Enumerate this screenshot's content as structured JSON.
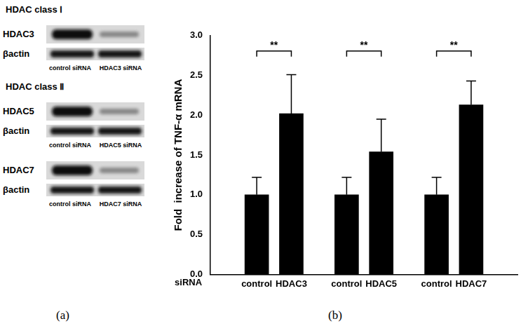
{
  "panel_a": {
    "label": "(a)",
    "sections": [
      {
        "heading": "HDAC class Ⅰ",
        "blots": [
          {
            "target": "HDAC3",
            "loading": "βactin",
            "lanes": [
              "control siRNA",
              "HDAC3 siRNA"
            ]
          }
        ]
      },
      {
        "heading": "HDAC class Ⅱ",
        "blots": [
          {
            "target": "HDAC5",
            "loading": "βactin",
            "lanes": [
              "control siRNA",
              "HDAC5 siRNA"
            ]
          },
          {
            "target": "HDAC7",
            "loading": "βactin",
            "lanes": [
              "control siRNA",
              "HDAC7 siRNA"
            ]
          }
        ]
      }
    ]
  },
  "panel_b": {
    "label": "(b)"
  },
  "chart_data": {
    "type": "bar",
    "y_label": "Fold  increase of TNF-α mRNA",
    "x_label": "siRNA",
    "categories": [
      "control",
      "HDAC3",
      "control",
      "HDAC5",
      "control",
      "HDAC7"
    ],
    "values": [
      1.0,
      2.02,
      1.0,
      1.54,
      1.0,
      2.13
    ],
    "errors": [
      0.22,
      0.49,
      0.22,
      0.41,
      0.22,
      0.3
    ],
    "color": "#000000",
    "ylim": [
      0,
      3
    ],
    "yticks": [
      {
        "value": 0,
        "label": "0.0"
      },
      0.5,
      {
        "value": 1,
        "label": "1.0"
      },
      1.5,
      {
        "value": 2,
        "label": "2.0"
      },
      2.5,
      {
        "value": 3,
        "label": "3.0"
      }
    ],
    "grid": false,
    "annotations": [
      {
        "from": 0,
        "to": 1,
        "text": "**"
      },
      {
        "from": 2,
        "to": 3,
        "text": "**"
      },
      {
        "from": 4,
        "to": 5,
        "text": "**"
      }
    ]
  }
}
